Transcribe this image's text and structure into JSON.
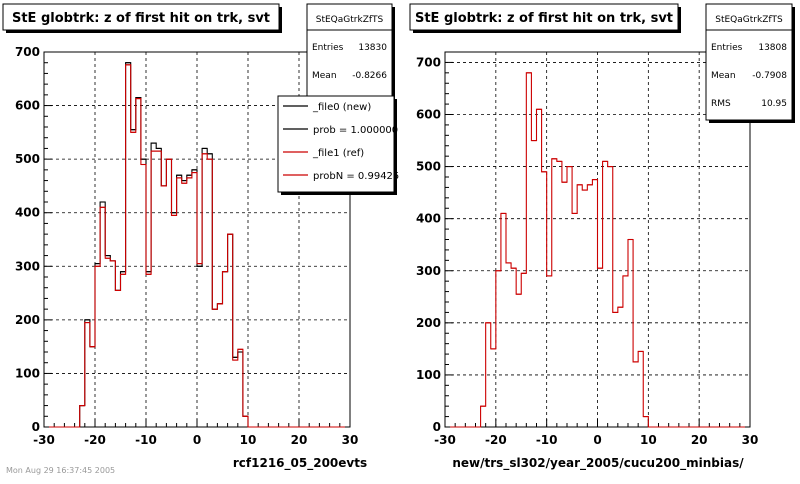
{
  "chart_data": [
    {
      "type": "line",
      "title": "StE globtrk: z of first hit on trk, svt",
      "xlabel": "rcf1216_05_200evts",
      "xlim": [
        -30,
        30
      ],
      "ylim": [
        0,
        700
      ],
      "xticks": [
        "-30",
        "-20",
        "-10",
        "0",
        "10",
        "20",
        "30"
      ],
      "yticks": [
        "0",
        "100",
        "200",
        "300",
        "400",
        "500",
        "600",
        "700"
      ],
      "grid": true,
      "stats": {
        "name": "StEQaGtrkZfTS",
        "rows": [
          {
            "label": "Entries",
            "value": "13830"
          },
          {
            "label": "Mean",
            "value": "-0.8266"
          }
        ]
      },
      "legend": {
        "placement": "top-right",
        "entries": [
          {
            "label": "_file0 (new)",
            "color": "#000000"
          },
          {
            "label": "prob = 1.000000",
            "color": "#000000"
          },
          {
            "label": "_file1 (ref)",
            "color": "#cc0000"
          },
          {
            "label": "probN = 0.99425",
            "color": "#cc0000"
          }
        ]
      },
      "bin_edges": [
        -29,
        -28,
        -27,
        -26,
        -25,
        -24,
        -23,
        -22,
        -21,
        -20,
        -19,
        -18,
        -17,
        -16,
        -15,
        -14,
        -13,
        -12,
        -11,
        -10,
        -9,
        -8,
        -7,
        -6,
        -5,
        -4,
        -3,
        -2,
        -1,
        0,
        1,
        2,
        3,
        4,
        5,
        6,
        7,
        8,
        9,
        10,
        11,
        12,
        13,
        14,
        15,
        16,
        17,
        18,
        19,
        20,
        21,
        22,
        23,
        24,
        25,
        26,
        27,
        28,
        29
      ],
      "series": [
        {
          "name": "_file0 (new)",
          "color": "#000000",
          "values": [
            0,
            0,
            0,
            0,
            0,
            0,
            40,
            200,
            150,
            305,
            420,
            320,
            310,
            255,
            290,
            680,
            555,
            615,
            500,
            290,
            530,
            520,
            450,
            500,
            400,
            470,
            460,
            470,
            480,
            300,
            520,
            510,
            220,
            230,
            290,
            360,
            130,
            140,
            20,
            0,
            0,
            0,
            0,
            0,
            0,
            0,
            0,
            0,
            0,
            0,
            0,
            0,
            0,
            0,
            0,
            0,
            0,
            0
          ]
        },
        {
          "name": "_file1 (ref)",
          "color": "#cc0000",
          "values": [
            0,
            0,
            0,
            0,
            0,
            0,
            40,
            195,
            150,
            300,
            410,
            315,
            310,
            255,
            285,
            676,
            550,
            613,
            490,
            285,
            515,
            515,
            450,
            500,
            395,
            465,
            455,
            465,
            475,
            305,
            510,
            500,
            220,
            230,
            290,
            360,
            125,
            145,
            20,
            0,
            0,
            0,
            0,
            0,
            0,
            0,
            0,
            0,
            0,
            0,
            0,
            0,
            0,
            0,
            0,
            0,
            0,
            0
          ]
        }
      ]
    },
    {
      "type": "line",
      "title": "StE globtrk: z of first hit on trk, svt",
      "xlabel": "new/trs_sl302/year_2005/cucu200_minbias/",
      "xlim": [
        -30,
        30
      ],
      "ylim": [
        0,
        720
      ],
      "xticks": [
        "-30",
        "-20",
        "-10",
        "0",
        "10",
        "20",
        "30"
      ],
      "yticks": [
        "0",
        "100",
        "200",
        "300",
        "400",
        "500",
        "600",
        "700"
      ],
      "grid": true,
      "stats": {
        "name": "StEQaGtrkZfTS",
        "rows": [
          {
            "label": "Entries",
            "value": "13808"
          },
          {
            "label": "Mean",
            "value": "-0.7908"
          },
          {
            "label": "RMS",
            "value": "10.95"
          }
        ]
      },
      "bin_edges": [
        -29,
        -28,
        -27,
        -26,
        -25,
        -24,
        -23,
        -22,
        -21,
        -20,
        -19,
        -18,
        -17,
        -16,
        -15,
        -14,
        -13,
        -12,
        -11,
        -10,
        -9,
        -8,
        -7,
        -6,
        -5,
        -4,
        -3,
        -2,
        -1,
        0,
        1,
        2,
        3,
        4,
        5,
        6,
        7,
        8,
        9,
        10,
        11,
        12,
        13,
        14,
        15,
        16,
        17,
        18,
        19,
        20,
        21,
        22,
        23,
        24,
        25,
        26,
        27,
        28,
        29
      ],
      "series": [
        {
          "name": "",
          "color": "#cc0000",
          "values": [
            0,
            0,
            0,
            0,
            0,
            0,
            40,
            200,
            150,
            300,
            410,
            315,
            305,
            255,
            295,
            680,
            550,
            610,
            490,
            290,
            515,
            510,
            470,
            500,
            410,
            465,
            455,
            465,
            475,
            305,
            510,
            500,
            220,
            230,
            290,
            360,
            125,
            145,
            20,
            0,
            0,
            0,
            0,
            0,
            0,
            0,
            0,
            0,
            0,
            0,
            0,
            0,
            0,
            0,
            0,
            0,
            0,
            0
          ]
        }
      ]
    }
  ],
  "footer_text": "Mon Aug 29 16:37:45 2005"
}
